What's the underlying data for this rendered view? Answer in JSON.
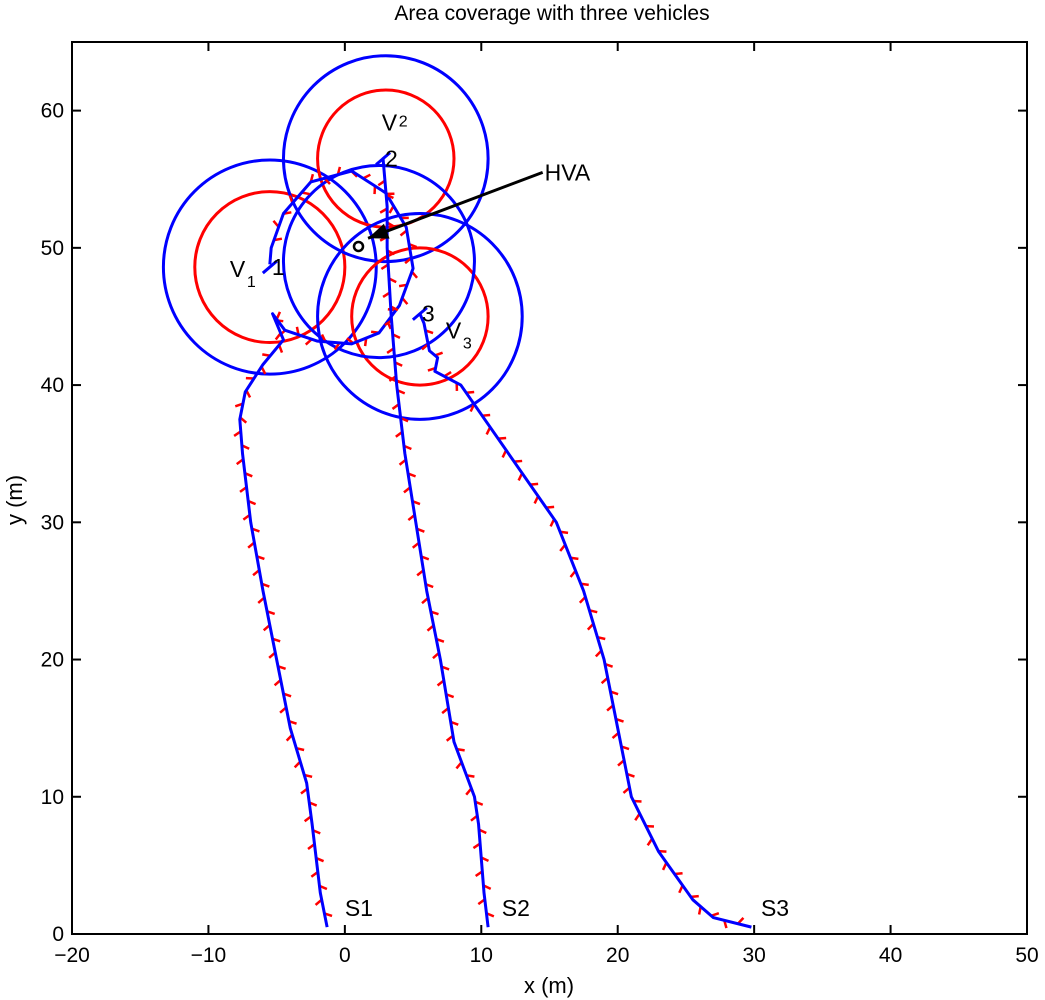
{
  "chart_data": {
    "type": "line",
    "title": "Area coverage with three vehicles",
    "xlabel": "x (m)",
    "ylabel": "y (m)",
    "xlim": [
      -20,
      50
    ],
    "ylim": [
      0,
      65
    ],
    "xticks": [
      -20,
      -10,
      0,
      10,
      20,
      30,
      40,
      50
    ],
    "yticks": [
      0,
      10,
      20,
      30,
      40,
      50,
      60
    ],
    "xtick_labels": [
      "−20",
      "−10",
      "0",
      "10",
      "20",
      "30",
      "40",
      "50"
    ],
    "ytick_labels": [
      "0",
      "10",
      "20",
      "30",
      "40",
      "50",
      "60"
    ],
    "grid": false,
    "colors": {
      "trajectory": "#0000ff",
      "inner_circle": "#ff0000",
      "outer_circle": "#0000ff",
      "heading": "#ff0000",
      "hva": "#000000"
    },
    "trajectories": [
      {
        "start_label": "S1",
        "end_label": "1",
        "points": [
          [
            -1.3,
            0.5
          ],
          [
            -1.8,
            3.0
          ],
          [
            -2.4,
            8.0
          ],
          [
            -2.8,
            11.0
          ],
          [
            -4.0,
            15.0
          ],
          [
            -5.0,
            20.0
          ],
          [
            -6.0,
            25.0
          ],
          [
            -6.9,
            30.0
          ],
          [
            -7.5,
            35.0
          ],
          [
            -7.7,
            37.5
          ],
          [
            -7.3,
            39.5
          ],
          [
            -6.0,
            41.5
          ],
          [
            -4.5,
            43.3
          ],
          [
            -5.3,
            45.2
          ],
          [
            -4.4,
            44.0
          ],
          [
            -2.0,
            43.2
          ],
          [
            0.5,
            43.0
          ],
          [
            2.5,
            43.8
          ],
          [
            4.0,
            45.8
          ],
          [
            5.0,
            48.5
          ],
          [
            4.5,
            51.5
          ],
          [
            3.0,
            54.0
          ],
          [
            0.5,
            55.6
          ],
          [
            -2.5,
            54.8
          ],
          [
            -4.5,
            52.5
          ],
          [
            -5.4,
            50.0
          ],
          [
            -5.5,
            48.8
          ]
        ],
        "end": [
          -5.5,
          48.6
        ]
      },
      {
        "start_label": "S2",
        "end_label": "2",
        "points": [
          [
            10.5,
            0.5
          ],
          [
            10.2,
            3.0
          ],
          [
            9.8,
            8.0
          ],
          [
            9.5,
            10.0
          ],
          [
            8.0,
            14.0
          ],
          [
            7.0,
            20.0
          ],
          [
            6.0,
            25.0
          ],
          [
            5.2,
            30.0
          ],
          [
            4.4,
            35.0
          ],
          [
            3.8,
            40.0
          ],
          [
            3.4,
            45.0
          ],
          [
            3.1,
            50.0
          ],
          [
            3.1,
            53.0
          ],
          [
            2.8,
            56.5
          ]
        ],
        "end": [
          2.8,
          56.5
        ]
      },
      {
        "start_label": "S3",
        "end_label": "3",
        "points": [
          [
            29.8,
            0.5
          ],
          [
            27.0,
            1.2
          ],
          [
            25.5,
            2.5
          ],
          [
            23.0,
            6.0
          ],
          [
            21.0,
            10.0
          ],
          [
            20.0,
            15.0
          ],
          [
            19.0,
            20.0
          ],
          [
            17.5,
            25.0
          ],
          [
            15.5,
            30.0
          ],
          [
            12.0,
            35.0
          ],
          [
            8.5,
            40.0
          ],
          [
            6.6,
            41.0
          ],
          [
            6.8,
            42.0
          ],
          [
            6.2,
            42.5
          ],
          [
            5.8,
            44.5
          ],
          [
            5.5,
            45.2
          ]
        ],
        "end": [
          5.5,
          45.2
        ]
      }
    ],
    "vehicles": [
      {
        "label": "V",
        "subscript": "1",
        "center": [
          -5.5,
          48.6
        ],
        "inner_radius": 5.5,
        "outer_radius": 7.8
      },
      {
        "label": "V",
        "subscript": "2",
        "center": [
          3.0,
          56.5
        ],
        "inner_radius": 5.0,
        "outer_radius": 7.5
      },
      {
        "label": "V",
        "subscript": "3",
        "center": [
          5.5,
          45.0
        ],
        "inner_radius": 5.0,
        "outer_radius": 7.5
      }
    ],
    "extra_circle": {
      "center": [
        2.5,
        49.0
      ],
      "radius": 7.0
    },
    "hva": {
      "label": "HVA",
      "point": [
        1.0,
        50.1
      ],
      "arrow_tail": [
        14.5,
        55.5
      ],
      "arrow_head": [
        1.7,
        50.7
      ]
    },
    "annotations": [
      {
        "text": "S1",
        "at": [
          0.0,
          1.9
        ]
      },
      {
        "text": "S2",
        "at": [
          11.5,
          1.9
        ]
      },
      {
        "text": "S3",
        "at": [
          30.5,
          1.9
        ]
      }
    ]
  }
}
